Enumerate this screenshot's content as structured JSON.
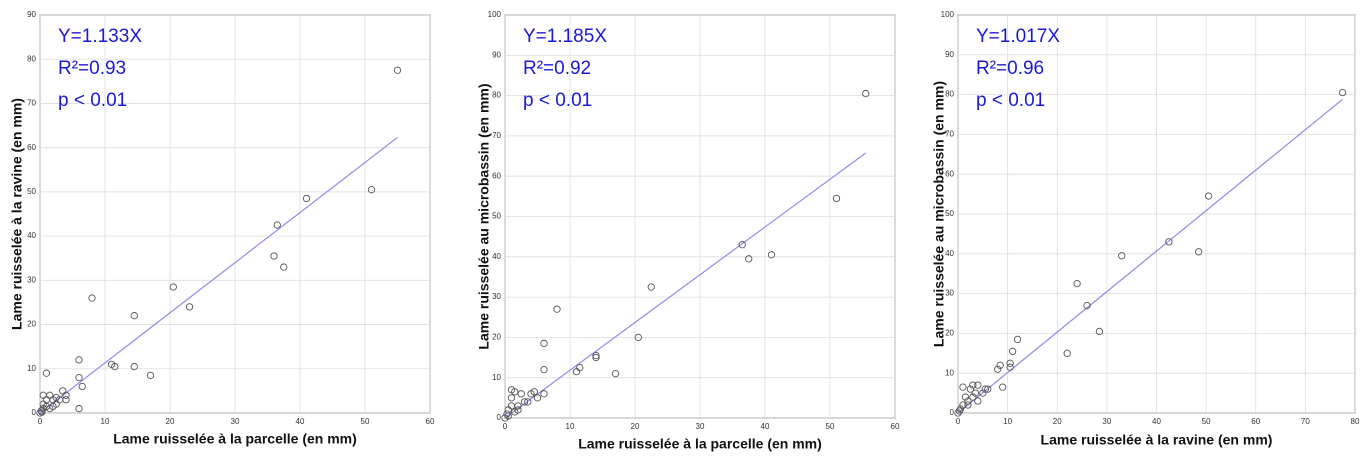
{
  "chart_data": [
    {
      "type": "scatter",
      "xlabel": "Lame ruisselée à la parcelle (en mm)",
      "ylabel": "Lame ruisselée à la ravine (en mm)",
      "annotations": [
        "Y=1.133X",
        "R²=0.93",
        "p < 0.01"
      ],
      "fit_slope": 1.133,
      "xlim": [
        0,
        60
      ],
      "ylim": [
        0,
        90
      ],
      "xticks": [
        0,
        10,
        20,
        30,
        40,
        50,
        60
      ],
      "yticks": [
        0,
        10,
        20,
        30,
        40,
        50,
        60,
        70,
        80,
        90
      ],
      "grid": true,
      "marker_color": "#555555",
      "fit_color": "#8c8cf0",
      "x": [
        55,
        51,
        41,
        36.5,
        36,
        37.5,
        23,
        20.5,
        17,
        14.5,
        14.5,
        11.5,
        11,
        8,
        6,
        6,
        6.5,
        6,
        4,
        4,
        3.5,
        3,
        2.5,
        2,
        1.5,
        1,
        1,
        0.5,
        0.5,
        0.2,
        0,
        0.3,
        1,
        1.5,
        2,
        2.5,
        0.5
      ],
      "y": [
        77.5,
        50.5,
        48.5,
        42.5,
        35.5,
        33,
        24,
        28.5,
        8.5,
        22,
        10.5,
        10.5,
        11,
        26,
        12,
        8,
        6,
        1,
        4,
        3,
        5,
        3,
        2,
        3,
        4,
        9,
        3,
        2,
        1,
        0.5,
        0,
        0.2,
        1.5,
        1,
        1.5,
        3.5,
        4
      ]
    },
    {
      "type": "scatter",
      "xlabel": "Lame ruisselée à la parcelle (en mm)",
      "ylabel": "Lame ruisselée au microbassin (en mm)",
      "annotations": [
        "Y=1.185X",
        "R²=0.92",
        "p < 0.01"
      ],
      "fit_slope": 1.185,
      "xlim": [
        0,
        60
      ],
      "ylim": [
        0,
        100
      ],
      "xticks": [
        0,
        10,
        20,
        30,
        40,
        50,
        60
      ],
      "yticks": [
        0,
        10,
        20,
        30,
        40,
        50,
        60,
        70,
        80,
        90,
        100
      ],
      "grid": true,
      "marker_color": "#555555",
      "fit_color": "#8c8cf0",
      "x": [
        55.5,
        51,
        41,
        37.5,
        36.5,
        22.5,
        20.5,
        17,
        14,
        14,
        11.5,
        11,
        8,
        6,
        6,
        6,
        5,
        4,
        3.5,
        3,
        2.5,
        2,
        2,
        1.5,
        1,
        1,
        1,
        0.5,
        0.3,
        0,
        0.5,
        1.5,
        4.5
      ],
      "y": [
        80.5,
        54.5,
        40.5,
        39.5,
        43,
        32.5,
        20,
        11,
        15.5,
        15,
        12.5,
        11.5,
        27,
        18.5,
        12,
        6,
        5,
        6,
        4,
        4,
        6,
        3,
        2,
        6.5,
        7,
        5,
        3,
        2,
        1,
        0,
        0.5,
        1.5,
        6.5
      ]
    },
    {
      "type": "scatter",
      "xlabel": "Lame ruisselée à la ravine (en mm)",
      "ylabel": "Lame ruisselée au microbassin (en mm)",
      "annotations": [
        "Y=1.017X",
        "R²=0.96",
        "p < 0.01"
      ],
      "fit_slope": 1.017,
      "xlim": [
        0,
        80
      ],
      "ylim": [
        0,
        100
      ],
      "xticks": [
        0,
        10,
        20,
        30,
        40,
        50,
        60,
        70,
        80
      ],
      "yticks": [
        0,
        10,
        20,
        30,
        40,
        50,
        60,
        70,
        80,
        90,
        100
      ],
      "grid": true,
      "marker_color": "#555555",
      "fit_color": "#8c8cf0",
      "x": [
        77.5,
        50.5,
        48.5,
        42.5,
        33,
        28.5,
        26,
        24,
        22,
        12,
        11,
        10.5,
        10.5,
        9,
        8.5,
        8,
        6,
        5,
        4,
        3.5,
        3,
        3,
        2.5,
        2,
        1.5,
        1,
        1,
        0.5,
        0,
        0.3,
        2,
        4,
        5.5
      ],
      "y": [
        80.5,
        54.5,
        40.5,
        43,
        39.5,
        20.5,
        27,
        32.5,
        15,
        18.5,
        15.5,
        11.5,
        12.5,
        6.5,
        12,
        11,
        6,
        5,
        7,
        5,
        4,
        7,
        6,
        3,
        4,
        6.5,
        2,
        1,
        0,
        0.5,
        2,
        3,
        6
      ]
    }
  ]
}
